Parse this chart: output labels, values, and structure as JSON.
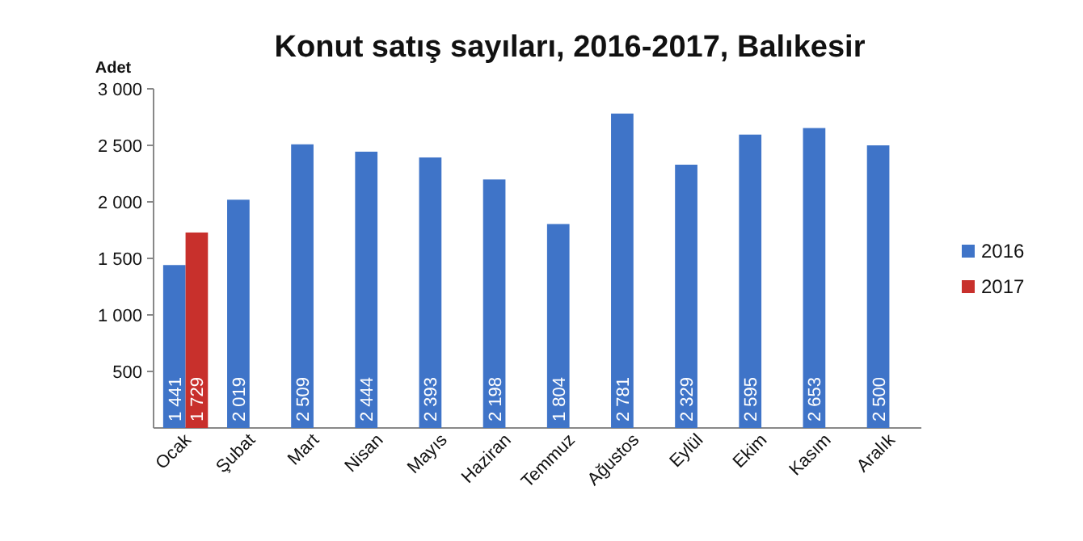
{
  "chart_data": {
    "type": "bar",
    "title": "Konut satış sayıları, 2016-2017, Balıkesir",
    "ylabel": "Adet",
    "categories": [
      "Ocak",
      "Şubat",
      "Mart",
      "Nisan",
      "Mayıs",
      "Haziran",
      "Temmuz",
      "Ağustos",
      "Eylül",
      "Ekim",
      "Kasım",
      "Aralık"
    ],
    "series": [
      {
        "name": "2016",
        "color": "#3f74c8",
        "values": [
          1441,
          2019,
          2509,
          2444,
          2393,
          2198,
          1804,
          2781,
          2329,
          2595,
          2653,
          2500
        ],
        "value_labels": [
          "1 441",
          "2 019",
          "2 509",
          "2 444",
          "2 393",
          "2 198",
          "1 804",
          "2 781",
          "2 329",
          "2 595",
          "2 653",
          "2 500"
        ]
      },
      {
        "name": "2017",
        "color": "#c8302c",
        "values": [
          1729,
          null,
          null,
          null,
          null,
          null,
          null,
          null,
          null,
          null,
          null,
          null
        ],
        "value_labels": [
          "1 729",
          null,
          null,
          null,
          null,
          null,
          null,
          null,
          null,
          null,
          null,
          null
        ]
      }
    ],
    "ylim": [
      0,
      3000
    ],
    "yticks": [
      {
        "value": 500,
        "label": "500"
      },
      {
        "value": 1000,
        "label": "1 000"
      },
      {
        "value": 1500,
        "label": "1 500"
      },
      {
        "value": 2000,
        "label": "2 000"
      },
      {
        "value": 2500,
        "label": "2 500"
      },
      {
        "value": 3000,
        "label": "3 000"
      }
    ],
    "grid": false,
    "legend": "right"
  }
}
